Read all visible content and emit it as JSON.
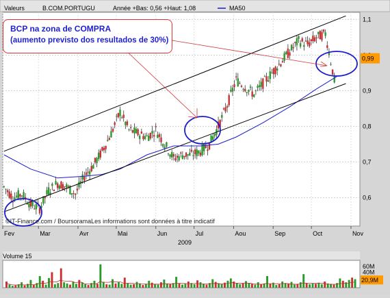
{
  "header": {
    "label_valeurs": "Valeurs",
    "ticker": "B.COM.PORTUGU",
    "stats": "Année +Bas: 0,56 +Haut: 1,08",
    "ma_label": "MA50"
  },
  "callout": {
    "line1": "BCP na zona de COMPRA",
    "line2": "(aumento previsto dos resultados de 30%)"
  },
  "copyright": "©IT-Finance.com / BoursoramaLes informations sont données à titre indicatif",
  "year_label": "2009",
  "volume": {
    "title": "Volume 15",
    "ticks": [
      "60M",
      "40M"
    ],
    "current": "20,9M"
  },
  "colors": {
    "up": "#2a9a2a",
    "down": "#c83232",
    "ma": "#1c1ccc",
    "channel": "#000000",
    "annotation": "#1c1ccc",
    "arrow": "#d33333",
    "price_badge": "#ff9a00"
  },
  "chart_data": {
    "type": "candlestick",
    "title": "B.COM.PORTUGU",
    "xlabel": "2009",
    "x_ticks": [
      "Fev",
      "Mar",
      "Avr",
      "Mai",
      "Jun",
      "Jul",
      "Aou",
      "Sep",
      "Oct",
      "Nov"
    ],
    "y_ticks": [
      "1,1",
      "1,0",
      "0,9",
      "0,8",
      "0,7",
      "0,6"
    ],
    "ylim": [
      0.52,
      1.12
    ],
    "grid": true,
    "last_price": "0,99",
    "ma_name": "MA50",
    "close_series": [
      [
        "2009-02-02",
        0.63
      ],
      [
        "2009-02-09",
        0.6
      ],
      [
        "2009-02-16",
        0.61
      ],
      [
        "2009-02-23",
        0.58
      ],
      [
        "2009-03-02",
        0.57
      ],
      [
        "2009-03-09",
        0.62
      ],
      [
        "2009-03-16",
        0.64
      ],
      [
        "2009-03-23",
        0.63
      ],
      [
        "2009-03-30",
        0.61
      ],
      [
        "2009-04-06",
        0.66
      ],
      [
        "2009-04-13",
        0.69
      ],
      [
        "2009-04-20",
        0.73
      ],
      [
        "2009-04-27",
        0.78
      ],
      [
        "2009-05-04",
        0.84
      ],
      [
        "2009-05-11",
        0.79
      ],
      [
        "2009-05-18",
        0.78
      ],
      [
        "2009-05-25",
        0.77
      ],
      [
        "2009-06-01",
        0.79
      ],
      [
        "2009-06-08",
        0.75
      ],
      [
        "2009-06-15",
        0.71
      ],
      [
        "2009-06-22",
        0.72
      ],
      [
        "2009-06-29",
        0.72
      ],
      [
        "2009-07-06",
        0.73
      ],
      [
        "2009-07-13",
        0.75
      ],
      [
        "2009-07-20",
        0.8
      ],
      [
        "2009-07-27",
        0.86
      ],
      [
        "2009-08-03",
        0.93
      ],
      [
        "2009-08-10",
        0.91
      ],
      [
        "2009-08-17",
        0.89
      ],
      [
        "2009-08-24",
        0.92
      ],
      [
        "2009-08-31",
        0.95
      ],
      [
        "2009-09-07",
        0.98
      ],
      [
        "2009-09-14",
        1.01
      ],
      [
        "2009-09-21",
        1.04
      ],
      [
        "2009-09-28",
        1.03
      ],
      [
        "2009-10-05",
        1.05
      ],
      [
        "2009-10-12",
        1.06
      ],
      [
        "2009-10-19",
        0.93
      ],
      [
        "2009-10-21",
        0.99
      ]
    ],
    "ma50": [
      [
        "2009-02-02",
        0.72
      ],
      [
        "2009-02-23",
        0.68
      ],
      [
        "2009-03-16",
        0.655
      ],
      [
        "2009-04-06",
        0.66
      ],
      [
        "2009-04-20",
        0.665
      ],
      [
        "2009-05-04",
        0.68
      ],
      [
        "2009-05-25",
        0.72
      ],
      [
        "2009-06-15",
        0.745
      ],
      [
        "2009-07-06",
        0.745
      ],
      [
        "2009-07-20",
        0.75
      ],
      [
        "2009-08-03",
        0.77
      ],
      [
        "2009-08-24",
        0.81
      ],
      [
        "2009-09-14",
        0.855
      ],
      [
        "2009-10-05",
        0.905
      ],
      [
        "2009-10-21",
        0.94
      ]
    ],
    "channel_upper": [
      [
        "2009-02-02",
        0.73
      ],
      [
        "2009-10-28",
        1.11
      ]
    ],
    "channel_lower": [
      [
        "2009-02-02",
        0.56
      ],
      [
        "2009-10-28",
        0.92
      ]
    ],
    "volume_bars": [
      16,
      8,
      5,
      6,
      9,
      14,
      6,
      10,
      20,
      7,
      12,
      30,
      18,
      8,
      25,
      40,
      9,
      12,
      50,
      14,
      11,
      8,
      16,
      10,
      20,
      14,
      9,
      7,
      12,
      18,
      10,
      60,
      15,
      9,
      8,
      22,
      11,
      14,
      10,
      26,
      12,
      8,
      9,
      15,
      11,
      7,
      10,
      18,
      13,
      9,
      8,
      14,
      21,
      10,
      9,
      12,
      28,
      11,
      8,
      10,
      16,
      12,
      9,
      19,
      14,
      10,
      8,
      12,
      22,
      15,
      11,
      9,
      13,
      18,
      24,
      16,
      12,
      9,
      11,
      17,
      12,
      10,
      8,
      14,
      9,
      11,
      30,
      10,
      13,
      7,
      9,
      16,
      12,
      11,
      15,
      8,
      10,
      14,
      35,
      12,
      9,
      11,
      10,
      13,
      9,
      16,
      11,
      10,
      8,
      12,
      24,
      18,
      14,
      20,
      26,
      22
    ],
    "volume_avg": 15,
    "annotations": [
      "BCP na zona de COMPRA",
      "(aumento previsto dos resultados de 30%)"
    ]
  }
}
